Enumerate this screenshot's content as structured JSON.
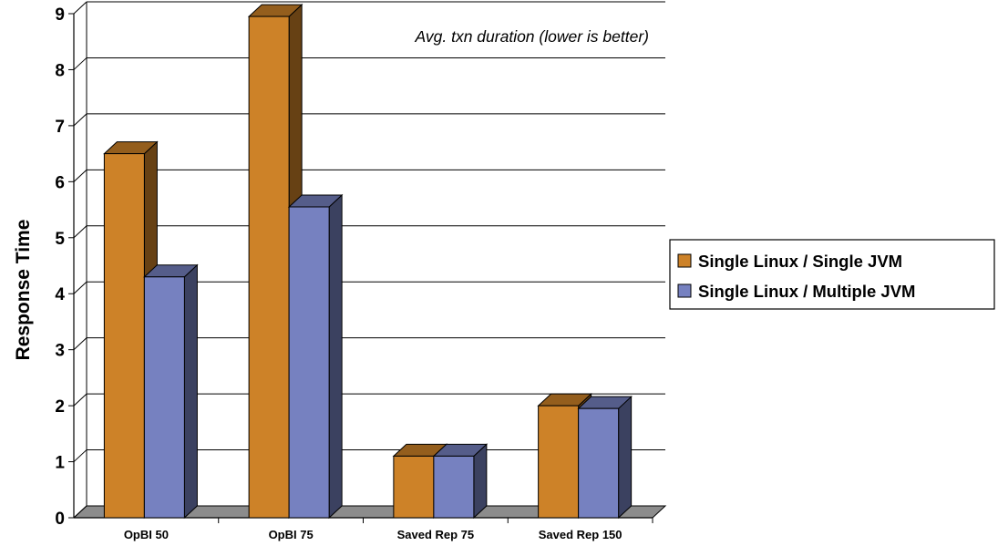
{
  "chart_data": {
    "type": "bar",
    "categories": [
      "OpBI 50",
      "OpBI 75",
      "Saved Rep 75",
      "Saved Rep 150"
    ],
    "series": [
      {
        "name": "Single Linux / Single JVM",
        "values": [
          6.5,
          8.95,
          1.1,
          2.0
        ],
        "color": "#CD8228"
      },
      {
        "name": "Single Linux / Multiple JVM",
        "values": [
          4.3,
          5.55,
          1.1,
          1.95
        ],
        "color": "#7681C0"
      }
    ],
    "ylabel": "Response Time",
    "ylim": [
      0,
      9
    ],
    "yticks": [
      "0",
      "1",
      "2",
      "3",
      "4",
      "5",
      "6",
      "7",
      "8",
      "9"
    ],
    "annotation": "Avg. txn duration (lower is better)",
    "grid": true,
    "legend": "right",
    "style": "3d"
  }
}
